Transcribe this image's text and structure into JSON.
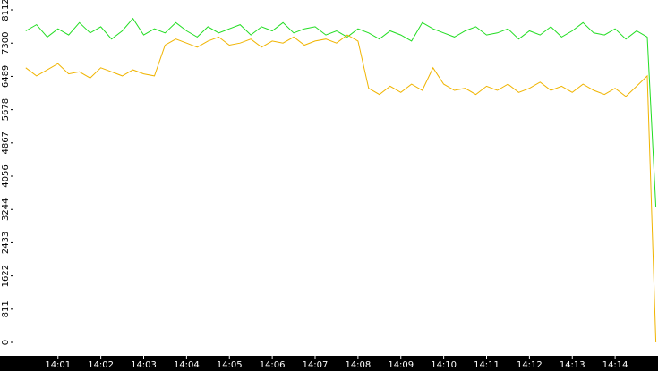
{
  "chart_data": {
    "type": "line",
    "x": [
      840.25,
      840.5,
      840.75,
      841,
      841.25,
      841.5,
      841.75,
      842,
      842.25,
      842.5,
      842.75,
      843,
      843.25,
      843.5,
      843.75,
      844,
      844.25,
      844.5,
      844.75,
      845,
      845.25,
      845.5,
      845.75,
      846,
      846.25,
      846.5,
      846.75,
      847,
      847.25,
      847.5,
      847.75,
      848,
      848.25,
      848.5,
      848.75,
      849,
      849.25,
      849.5,
      849.75,
      850,
      850.25,
      850.5,
      850.75,
      851,
      851.25,
      851.5,
      851.75,
      852,
      852.25,
      852.5,
      852.75,
      853,
      853.25,
      853.5,
      853.75,
      854,
      854.25,
      854.5,
      854.75,
      854.95
    ],
    "series": [
      {
        "color": "#22dd22",
        "values": [
          7600,
          7750,
          7450,
          7650,
          7500,
          7800,
          7550,
          7700,
          7400,
          7600,
          7900,
          7500,
          7650,
          7550,
          7800,
          7600,
          7450,
          7700,
          7550,
          7650,
          7750,
          7500,
          7700,
          7600,
          7800,
          7550,
          7650,
          7700,
          7500,
          7600,
          7450,
          7650,
          7550,
          7400,
          7600,
          7500,
          7350,
          7800,
          7650,
          7550,
          7450,
          7600,
          7700,
          7500,
          7550,
          7650,
          7400,
          7600,
          7500,
          7700,
          7450,
          7600,
          7800,
          7550,
          7500,
          7650,
          7400,
          7600,
          7450,
          3300
        ]
      },
      {
        "color": "#f0b400",
        "values": [
          6700,
          6500,
          6650,
          6800,
          6550,
          6600,
          6450,
          6700,
          6600,
          6500,
          6650,
          6550,
          6500,
          7250,
          7400,
          7300,
          7200,
          7350,
          7450,
          7250,
          7300,
          7400,
          7200,
          7350,
          7300,
          7450,
          7250,
          7350,
          7400,
          7300,
          7500,
          7350,
          6200,
          6050,
          6250,
          6100,
          6300,
          6150,
          6700,
          6300,
          6150,
          6200,
          6050,
          6250,
          6150,
          6300,
          6100,
          6200,
          6350,
          6150,
          6250,
          6100,
          6300,
          6150,
          6050,
          6200,
          6000,
          6250,
          6500,
          0
        ]
      }
    ],
    "xlim": [
      839.94,
      855
    ],
    "xticks": [
      {
        "value": 841,
        "label": "14:01"
      },
      {
        "value": 842,
        "label": "14:02"
      },
      {
        "value": 843,
        "label": "14:03"
      },
      {
        "value": 844,
        "label": "14:04"
      },
      {
        "value": 845,
        "label": "14:05"
      },
      {
        "value": 846,
        "label": "14:06"
      },
      {
        "value": 847,
        "label": "14:07"
      },
      {
        "value": 848,
        "label": "14:08"
      },
      {
        "value": 849,
        "label": "14:09"
      },
      {
        "value": 850,
        "label": "14:10"
      },
      {
        "value": 851,
        "label": "14:11"
      },
      {
        "value": 852,
        "label": "14:12"
      },
      {
        "value": 853,
        "label": "14:13"
      },
      {
        "value": 854,
        "label": "14:14"
      }
    ],
    "ylim": [
      -327,
      8352
    ],
    "yticks": [
      0,
      811,
      1622,
      2433,
      3244,
      4056,
      4867,
      5678,
      6489,
      7300,
      8112
    ]
  }
}
